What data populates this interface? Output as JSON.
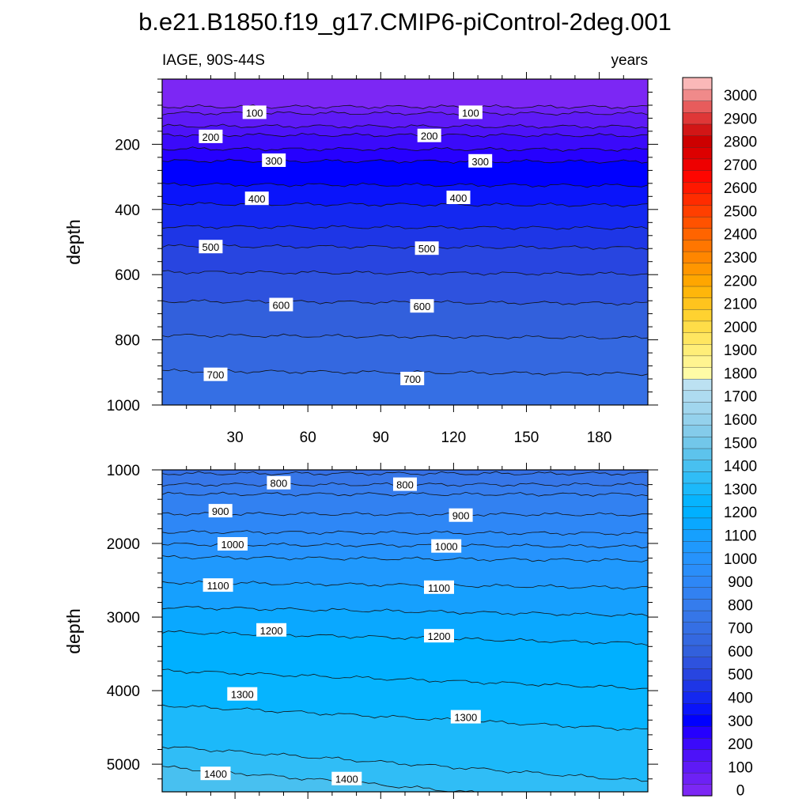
{
  "title": "b.e21.B1850.f19_g17.CMIP6-piControl-2deg.001",
  "chart_data": [
    {
      "type": "heatmap",
      "panel": "upper",
      "left_label": "IAGE, 90S-44S",
      "right_label": "years",
      "ylabel": "depth",
      "xlim": [
        0,
        200
      ],
      "ylim": [
        1000,
        0
      ],
      "x_ticks": [
        30,
        60,
        90,
        120,
        150,
        180
      ],
      "y_ticks": [
        200,
        400,
        600,
        800,
        1000
      ],
      "contour_interval": 50,
      "contours": [
        {
          "level": 50,
          "depth": 85
        },
        {
          "level": 100,
          "depth": 105
        },
        {
          "level": 150,
          "depth": 145
        },
        {
          "level": 200,
          "depth": 172
        },
        {
          "level": 250,
          "depth": 215
        },
        {
          "level": 300,
          "depth": 252
        },
        {
          "level": 350,
          "depth": 325
        },
        {
          "level": 400,
          "depth": 385
        },
        {
          "level": 450,
          "depth": 455
        },
        {
          "level": 500,
          "depth": 515
        },
        {
          "level": 550,
          "depth": 595
        },
        {
          "level": 600,
          "depth": 685
        },
        {
          "level": 650,
          "depth": 790
        },
        {
          "level": 700,
          "depth": 900
        }
      ],
      "contour_labels": [
        {
          "text": "100",
          "x": 38,
          "depth": 103
        },
        {
          "text": "100",
          "x": 127,
          "depth": 103
        },
        {
          "text": "200",
          "x": 20,
          "depth": 177
        },
        {
          "text": "200",
          "x": 110,
          "depth": 174
        },
        {
          "text": "300",
          "x": 46,
          "depth": 250
        },
        {
          "text": "300",
          "x": 131,
          "depth": 252
        },
        {
          "text": "400",
          "x": 39,
          "depth": 367
        },
        {
          "text": "400",
          "x": 122,
          "depth": 364
        },
        {
          "text": "500",
          "x": 20,
          "depth": 515
        },
        {
          "text": "500",
          "x": 109,
          "depth": 520
        },
        {
          "text": "600",
          "x": 49,
          "depth": 693
        },
        {
          "text": "600",
          "x": 107,
          "depth": 697
        },
        {
          "text": "700",
          "x": 22,
          "depth": 907
        },
        {
          "text": "700",
          "x": 103,
          "depth": 920
        }
      ]
    },
    {
      "type": "heatmap",
      "panel": "lower",
      "ylabel": "depth",
      "xlim": [
        0,
        200
      ],
      "ylim": [
        5375,
        1000
      ],
      "y_ticks": [
        1000,
        2000,
        3000,
        4000,
        5000
      ],
      "contour_interval": 50,
      "contours": [
        {
          "level": 750,
          "depth": 1050
        },
        {
          "level": 800,
          "depth": 1200
        },
        {
          "level": 850,
          "depth": 1330
        },
        {
          "level": 900,
          "depth": 1600
        },
        {
          "level": 950,
          "depth": 1850
        },
        {
          "level": 1000,
          "depth": 2020
        },
        {
          "level": 1050,
          "depth": 2200
        },
        {
          "level": 1100,
          "depth": 2550
        },
        {
          "level": 1150,
          "depth": 2900
        },
        {
          "level": 1200,
          "depth": 3250
        },
        {
          "level": 1250,
          "depth": 3800
        },
        {
          "level": 1300,
          "depth": 4300
        },
        {
          "level": 1350,
          "depth": 4900
        },
        {
          "level": 1400,
          "depth": 5200
        }
      ],
      "contour_labels": [
        {
          "text": "800",
          "x": 48,
          "depth": 1180
        },
        {
          "text": "800",
          "x": 100,
          "depth": 1200
        },
        {
          "text": "900",
          "x": 24,
          "depth": 1560
        },
        {
          "text": "900",
          "x": 123,
          "depth": 1620
        },
        {
          "text": "1000",
          "x": 29,
          "depth": 2010
        },
        {
          "text": "1000",
          "x": 117,
          "depth": 2040
        },
        {
          "text": "1100",
          "x": 23,
          "depth": 2570
        },
        {
          "text": "1100",
          "x": 114,
          "depth": 2600
        },
        {
          "text": "1200",
          "x": 45,
          "depth": 3180
        },
        {
          "text": "1200",
          "x": 114,
          "depth": 3260
        },
        {
          "text": "1300",
          "x": 33,
          "depth": 4050
        },
        {
          "text": "1300",
          "x": 125,
          "depth": 4360
        },
        {
          "text": "1400",
          "x": 22,
          "depth": 5130
        },
        {
          "text": "1400",
          "x": 76,
          "depth": 5200
        }
      ]
    }
  ],
  "colorbar": {
    "labels": [
      "0",
      "100",
      "200",
      "300",
      "400",
      "500",
      "600",
      "700",
      "800",
      "900",
      "1000",
      "1100",
      "1200",
      "1300",
      "1400",
      "1500",
      "1600",
      "1700",
      "1800",
      "1900",
      "2000",
      "2100",
      "2200",
      "2300",
      "2400",
      "2500",
      "2600",
      "2700",
      "2800",
      "2900",
      "3000"
    ],
    "colors": [
      "#7c27f4",
      "#6d21f5",
      "#5e1af6",
      "#4d12f8",
      "#3b0afa",
      "#2600fe",
      "#0000ff",
      "#0a14fa",
      "#1428f0",
      "#1e36e6",
      "#2845e0",
      "#2e52de",
      "#3260dc",
      "#3468e0",
      "#356fe4",
      "#3676e8",
      "#357ced",
      "#3281f1",
      "#2e87f6",
      "#2a8efa",
      "#2693fc",
      "#1f99fd",
      "#16a0fe",
      "#0aa8ff",
      "#00b0ff",
      "#06b4fe",
      "#1cb9fa",
      "#30bdf6",
      "#48c0f0",
      "#5dc3ec",
      "#72c7ea",
      "#84cbea",
      "#94d1ec",
      "#a1d6ee",
      "#aedbf0",
      "#bce1f2",
      "#fffba6",
      "#fff490",
      "#ffee78",
      "#ffe660",
      "#ffdd48",
      "#ffd230",
      "#ffc41e",
      "#ffb60a",
      "#ffa600",
      "#ff9600",
      "#ff8600",
      "#ff7600",
      "#ff6400",
      "#ff5200",
      "#ff3f00",
      "#ff2c00",
      "#ff1800",
      "#fe0600",
      "#ee0000",
      "#dd0000",
      "#cd0000",
      "#d21616",
      "#df3737",
      "#e75c5c",
      "#f08a8a",
      "#fab8b8"
    ]
  }
}
